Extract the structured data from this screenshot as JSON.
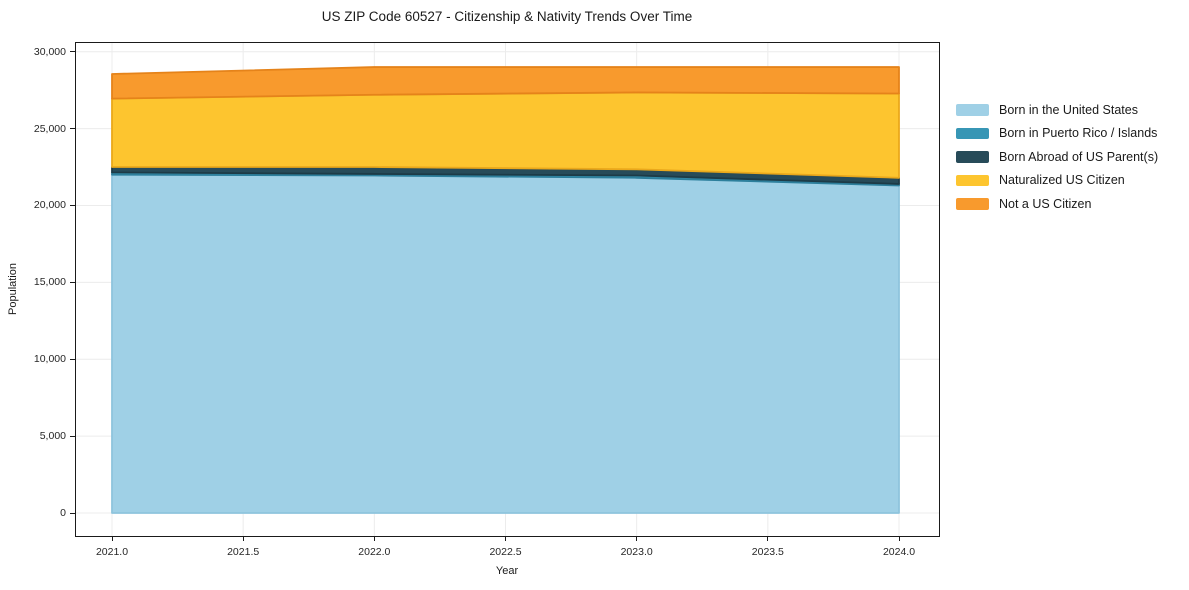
{
  "chart_data": {
    "type": "area",
    "stacked": true,
    "title": "US ZIP Code 60527 - Citizenship & Nativity Trends Over Time",
    "xlabel": "Year",
    "ylabel": "Population",
    "x": [
      2021,
      2022,
      2023,
      2024
    ],
    "series": [
      {
        "name": "Born in the United States",
        "color": "#9fd0e6",
        "edge_color": "#8ec4dd",
        "values": [
          22000,
          21950,
          21800,
          21300
        ]
      },
      {
        "name": "Born in Puerto Rico / Islands",
        "color": "#3796b5",
        "edge_color": "#2d7f9c",
        "values": [
          150,
          100,
          150,
          100
        ]
      },
      {
        "name": "Born Abroad of US Parent(s)",
        "color": "#274b59",
        "edge_color": "#1d3b47",
        "values": [
          350,
          450,
          400,
          400
        ]
      },
      {
        "name": "Naturalized US Citizen",
        "color": "#fdc52f",
        "edge_color": "#eaa81b",
        "values": [
          4450,
          4700,
          5000,
          5480
        ]
      },
      {
        "name": "Not a US Citizen",
        "color": "#f89a2d",
        "edge_color": "#e5831a",
        "values": [
          1600,
          1800,
          1650,
          1720
        ]
      }
    ],
    "xticks": {
      "values": [
        2021.0,
        2021.5,
        2022.0,
        2022.5,
        2023.0,
        2023.5,
        2024.0
      ],
      "labels": [
        "2021.0",
        "2021.5",
        "2022.0",
        "2022.5",
        "2023.0",
        "2023.5",
        "2024.0"
      ]
    },
    "yticks": {
      "values": [
        0,
        5000,
        10000,
        15000,
        20000,
        25000,
        30000
      ],
      "labels": [
        "0",
        "5,000",
        "10,000",
        "15,000",
        "20,000",
        "25,000",
        "30,000"
      ]
    },
    "ylim": [
      0,
      30000
    ],
    "grid": true,
    "grid_color": "#ececec",
    "spine_color": "#1a1a1a",
    "legend_position": "right-outside"
  }
}
